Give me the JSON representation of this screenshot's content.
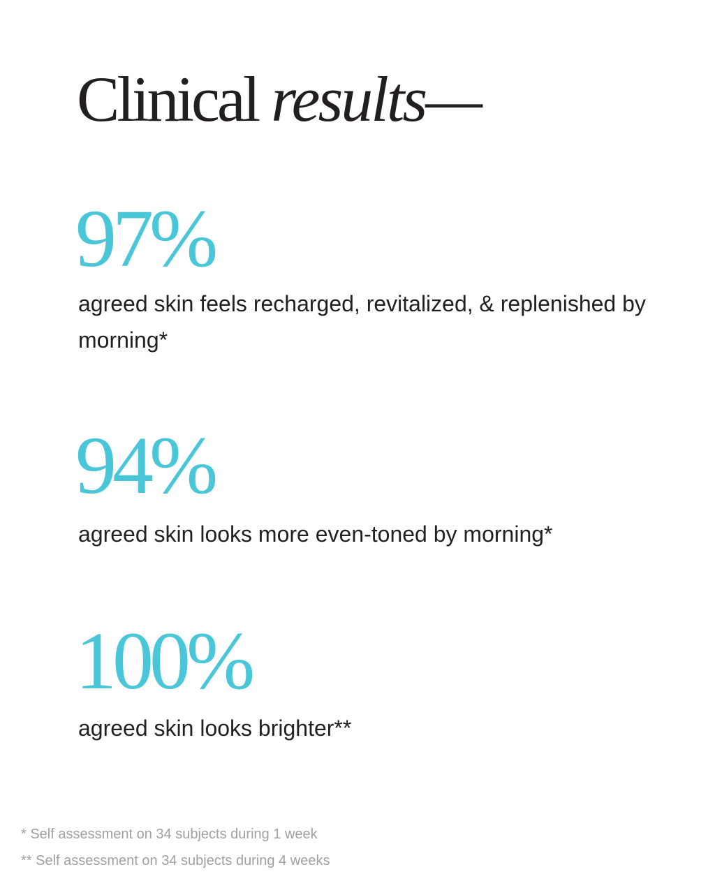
{
  "heading": {
    "regular": "Clinical",
    "italic": "results—"
  },
  "stats": [
    {
      "value": "97%",
      "description": "agreed skin feels recharged, revitalized, & replenished by morning*"
    },
    {
      "value": "94%",
      "description": "agreed skin looks more even-toned by morning*"
    },
    {
      "value": "100%",
      "description": "agreed skin looks brighter**"
    }
  ],
  "footnotes": [
    "* Self assessment on 34 subjects during 1 week",
    "** Self assessment on 34 subjects during 4 weeks"
  ],
  "colors": {
    "accent": "#4ac6d9",
    "text": "#231f20",
    "footnote": "#a0a0a0"
  }
}
